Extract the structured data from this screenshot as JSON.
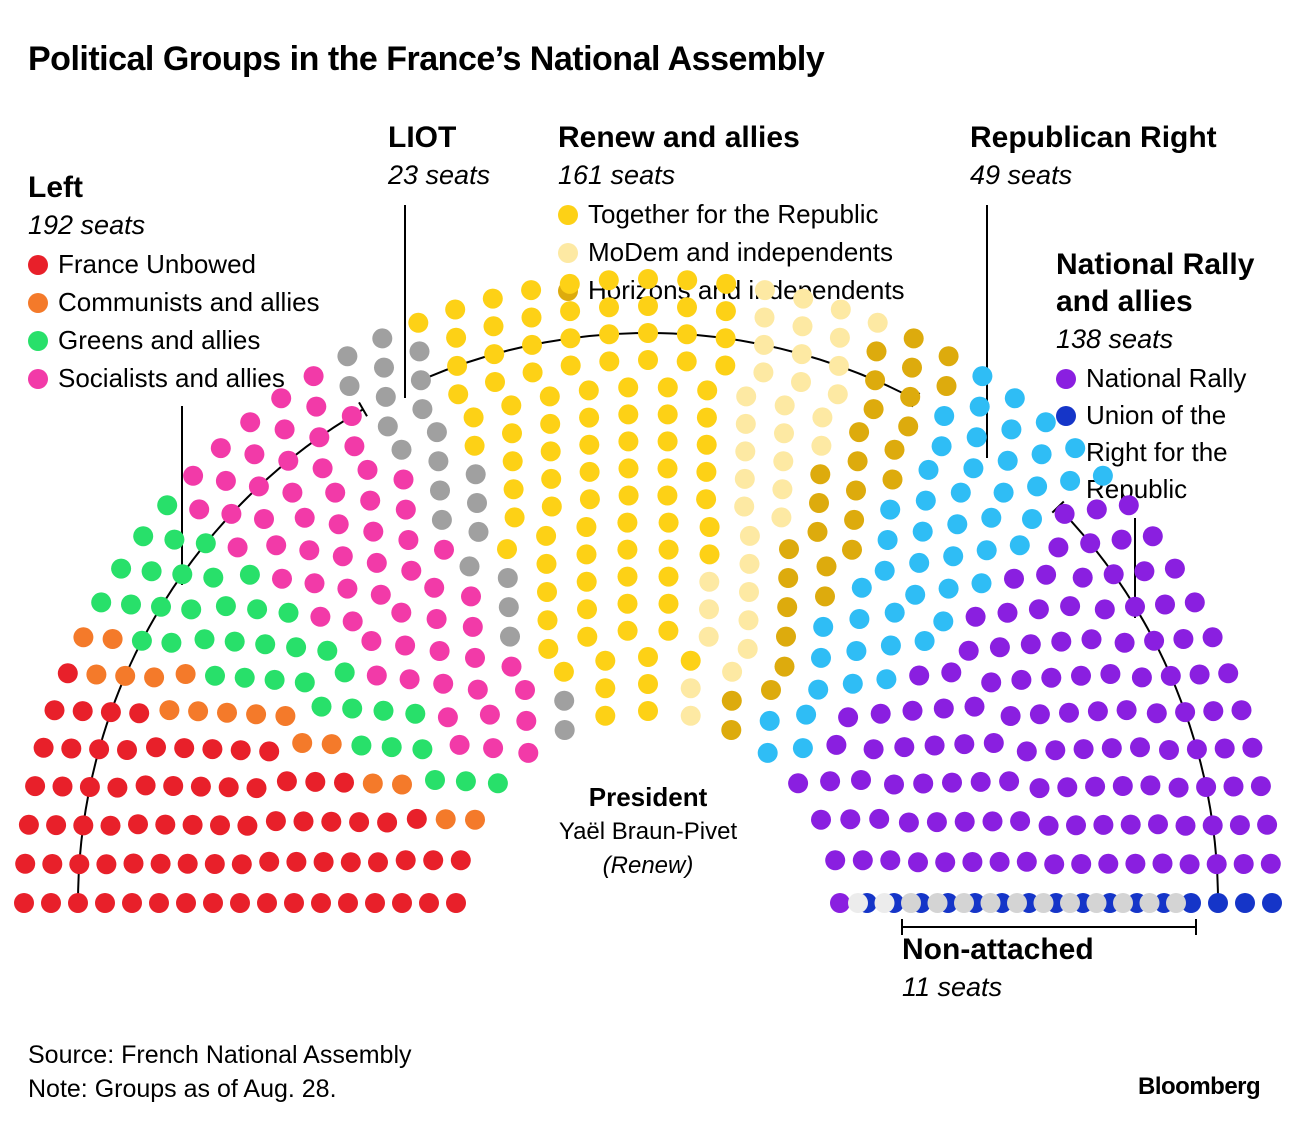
{
  "chart_data": {
    "type": "parliament-hemicycle",
    "title": "Political Groups in the France’s National Assembly",
    "total_seats": 577,
    "president": {
      "label": "President",
      "name": "Yaël Braun-Pivet",
      "group": "(Renew)"
    },
    "blocs": [
      {
        "id": "left",
        "name": "Left",
        "seats_label": "192 seats",
        "seats": 192,
        "parties": [
          {
            "name": "France Unbowed",
            "seats": 75,
            "color": "#e8202a"
          },
          {
            "name": "Communists and allies",
            "seats": 17,
            "color": "#f47a2a"
          },
          {
            "name": "Greens and allies",
            "seats": 38,
            "color": "#28e06a"
          },
          {
            "name": "Socialists and allies",
            "seats": 62,
            "color": "#f23aa8"
          }
        ]
      },
      {
        "id": "liot",
        "name": "LIOT",
        "seats_label": "23 seats",
        "seats": 23,
        "parties": [
          {
            "name": "LIOT",
            "seats": 23,
            "color": "#a0a0a0"
          }
        ]
      },
      {
        "id": "renew",
        "name": "Renew and allies",
        "seats_label": "161 seats",
        "seats": 161,
        "parties": [
          {
            "name": "Together for the Republic",
            "seats": 96,
            "color": "#fdd116"
          },
          {
            "name": "MoDem and independents",
            "seats": 36,
            "color": "#fde9a3"
          },
          {
            "name": "Horizons and independents",
            "seats": 29,
            "color": "#ddab0d"
          }
        ]
      },
      {
        "id": "republican-right",
        "name": "Republican Right",
        "seats_label": "49 seats",
        "seats": 49,
        "parties": [
          {
            "name": "Republican Right",
            "seats": 49,
            "color": "#2fbdf5"
          }
        ]
      },
      {
        "id": "national-rally",
        "name": "National Rally and allies",
        "name_lines": [
          "National Rally",
          "and allies"
        ],
        "seats_label": "138 seats",
        "seats": 138,
        "parties": [
          {
            "name": "National Rally",
            "seats": 122,
            "color": "#8a1fe0"
          },
          {
            "name": "Union of the Right for the Republic",
            "name_lines": [
              "Union of the",
              "Right for the",
              "Republic"
            ],
            "seats": 16,
            "color": "#1535c8"
          }
        ]
      },
      {
        "id": "non-attached",
        "name": "Non-attached",
        "seats_label": "11 seats",
        "seats": 11,
        "parties": [
          {
            "name": "Non-attached",
            "seats": 11,
            "color": "#d4d4d4"
          }
        ]
      }
    ],
    "vacant_color": "#ececec"
  },
  "footer": {
    "source": "Source: French National Assembly",
    "note": "Note: Groups as of Aug. 28.",
    "brand": "Bloomberg"
  }
}
